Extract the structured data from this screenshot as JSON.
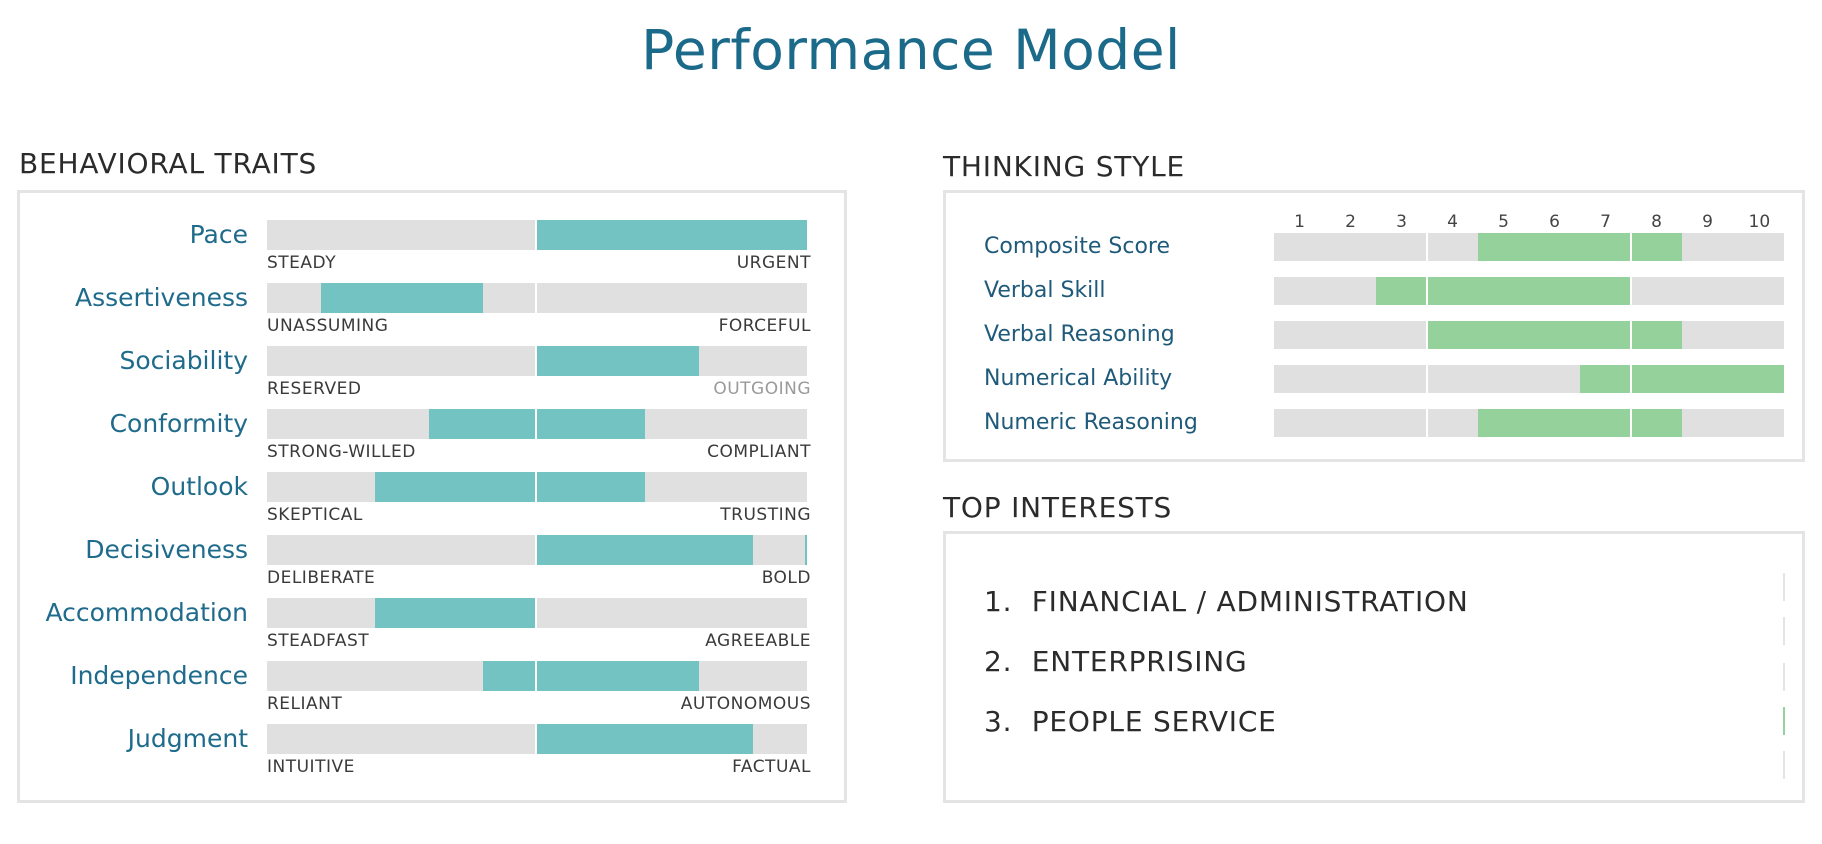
{
  "title": "Performance Model",
  "behavioral": {
    "heading": "BEHAVIORAL TRAITS",
    "accent": "#72c3c1",
    "traits": [
      {
        "label": "Pace",
        "left": "STEADY",
        "right": "URGENT",
        "range": [
          0.5,
          1.0
        ],
        "right_dim": false
      },
      {
        "label": "Assertiveness",
        "left": "UNASSUMING",
        "right": "FORCEFUL",
        "range": [
          0.1,
          0.4
        ],
        "right_dim": false
      },
      {
        "label": "Sociability",
        "left": "RESERVED",
        "right": "OUTGOING",
        "range": [
          0.5,
          0.8
        ],
        "right_dim": true
      },
      {
        "label": "Conformity",
        "left": "STRONG-WILLED",
        "right": "COMPLIANT",
        "range": [
          0.3,
          0.7
        ],
        "right_dim": false
      },
      {
        "label": "Outlook",
        "left": "SKEPTICAL",
        "right": "TRUSTING",
        "range": [
          0.2,
          0.7
        ],
        "right_dim": false
      },
      {
        "label": "Decisiveness",
        "left": "DELIBERATE",
        "right": "BOLD",
        "range": [
          0.5,
          0.9
        ],
        "right_dim": false,
        "end_mark": true
      },
      {
        "label": "Accommodation",
        "left": "STEADFAST",
        "right": "AGREEABLE",
        "range": [
          0.2,
          0.5
        ],
        "right_dim": false
      },
      {
        "label": "Independence",
        "left": "RELIANT",
        "right": "AUTONOMOUS",
        "range": [
          0.4,
          0.8
        ],
        "right_dim": false
      },
      {
        "label": "Judgment",
        "left": "INTUITIVE",
        "right": "FACTUAL",
        "range": [
          0.5,
          0.9
        ],
        "right_dim": false
      }
    ]
  },
  "thinking": {
    "heading": "THINKING STYLE",
    "accent": "#95d19a",
    "scale": [
      "1",
      "2",
      "3",
      "4",
      "5",
      "6",
      "7",
      "8",
      "9",
      "10"
    ],
    "rows": [
      {
        "label": "Composite Score",
        "range": [
          4,
          8
        ]
      },
      {
        "label": "Verbal Skill",
        "range": [
          2,
          7
        ]
      },
      {
        "label": "Verbal Reasoning",
        "range": [
          3,
          8
        ]
      },
      {
        "label": "Numerical Ability",
        "range": [
          6,
          10
        ]
      },
      {
        "label": "Numeric Reasoning",
        "range": [
          4,
          8
        ]
      }
    ]
  },
  "interests": {
    "heading": "TOP INTERESTS",
    "items": [
      {
        "num": "1.",
        "label": "FINANCIAL / ADMINISTRATION"
      },
      {
        "num": "2.",
        "label": "ENTERPRISING"
      },
      {
        "num": "3.",
        "label": "PEOPLE SERVICE"
      }
    ]
  }
}
